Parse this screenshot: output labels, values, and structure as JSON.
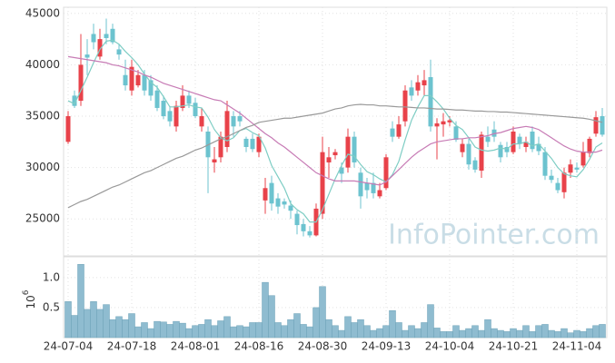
{
  "chart_data": {
    "type": "candlestick",
    "watermark": "InfoPointer.com",
    "categories": [
      "24-07-04",
      null,
      null,
      null,
      null,
      null,
      null,
      null,
      null,
      null,
      "24-07-18",
      null,
      null,
      null,
      null,
      null,
      null,
      null,
      null,
      null,
      "24-08-01",
      null,
      null,
      null,
      null,
      null,
      null,
      null,
      null,
      null,
      "24-08-16",
      null,
      null,
      null,
      null,
      null,
      null,
      null,
      null,
      null,
      "24-08-30",
      null,
      null,
      null,
      null,
      null,
      null,
      null,
      null,
      null,
      "24-09-13",
      null,
      null,
      null,
      null,
      null,
      null,
      null,
      null,
      null,
      "24-10-04",
      null,
      null,
      null,
      null,
      null,
      null,
      null,
      null,
      null,
      "24-10-21",
      null,
      null,
      null,
      null,
      null,
      null,
      null,
      null,
      null,
      "24-11-04",
      null,
      null,
      null,
      null
    ],
    "open": [
      32500,
      37000,
      36500,
      41000,
      43000,
      40800,
      43000,
      43500,
      41500,
      39000,
      37500,
      38000,
      39000,
      38500,
      37500,
      36500,
      35500,
      34000,
      35800,
      37000,
      36300,
      34000,
      33500,
      30500,
      31000,
      32000,
      35000,
      35000,
      32800,
      32800,
      31500,
      26800,
      28500,
      27000,
      26700,
      26300,
      25500,
      24500,
      23800,
      23400,
      25500,
      30500,
      31200,
      30000,
      30000,
      33000,
      29500,
      28500,
      28500,
      27200,
      28000,
      33800,
      33000,
      34500,
      37800,
      37500,
      38000,
      38800,
      34000,
      34200,
      34400,
      34000,
      31500,
      32300,
      30700,
      29700,
      33000,
      33700,
      32200,
      32000,
      31500,
      33000,
      32000,
      33500,
      32300,
      31500,
      29200,
      28500,
      27600,
      29500,
      30000,
      30200,
      31400,
      33300,
      35000
    ],
    "high": [
      35500,
      37500,
      43000,
      42500,
      44000,
      43500,
      44500,
      44000,
      42000,
      40500,
      40500,
      39500,
      39500,
      39000,
      38000,
      37000,
      36000,
      36500,
      38000,
      37500,
      36800,
      35800,
      34000,
      32000,
      33500,
      36500,
      35500,
      35500,
      33000,
      33300,
      33300,
      29000,
      29200,
      27500,
      27000,
      26800,
      25800,
      25000,
      24300,
      26500,
      33000,
      32000,
      31800,
      30500,
      33800,
      33500,
      30000,
      29000,
      29500,
      28500,
      31300,
      34500,
      35000,
      38000,
      38500,
      39000,
      39500,
      40500,
      34800,
      35300,
      35000,
      34500,
      32800,
      32800,
      31000,
      33500,
      34000,
      34500,
      32500,
      32500,
      34000,
      33300,
      33000,
      34000,
      33000,
      32000,
      29800,
      29000,
      30000,
      30800,
      30500,
      32500,
      33000,
      35500,
      35800
    ],
    "low": [
      32300,
      35800,
      36000,
      39000,
      41500,
      40500,
      42000,
      42000,
      40500,
      37500,
      37000,
      37800,
      37000,
      36500,
      35500,
      34700,
      34000,
      33500,
      35500,
      35800,
      34800,
      33500,
      27500,
      29500,
      30500,
      31500,
      33000,
      34000,
      31500,
      31500,
      31000,
      25500,
      25800,
      25500,
      26000,
      25000,
      23500,
      23300,
      23200,
      23300,
      25000,
      29000,
      30800,
      28500,
      29500,
      30000,
      26000,
      27000,
      27000,
      27000,
      27800,
      32500,
      32800,
      34000,
      36500,
      37000,
      37000,
      33500,
      30800,
      33000,
      34000,
      32500,
      31000,
      29800,
      29500,
      29000,
      32000,
      32500,
      30500,
      31000,
      31300,
      31800,
      31500,
      31500,
      31200,
      28800,
      28500,
      27500,
      27000,
      29000,
      29500,
      30000,
      31000,
      33000,
      33000
    ],
    "close": [
      35000,
      36000,
      40000,
      40700,
      42200,
      42500,
      42600,
      42200,
      41000,
      38000,
      39800,
      39000,
      37500,
      37000,
      35800,
      35000,
      34500,
      36000,
      37000,
      36200,
      35000,
      35000,
      31000,
      30800,
      33000,
      35500,
      34000,
      34500,
      32000,
      31800,
      33000,
      28000,
      26500,
      26200,
      26400,
      25800,
      24400,
      23800,
      23400,
      26000,
      31500,
      31000,
      31500,
      29400,
      33000,
      30500,
      27200,
      27800,
      27500,
      27800,
      31000,
      33000,
      34200,
      37500,
      37000,
      38300,
      38500,
      34000,
      34300,
      34500,
      34600,
      32700,
      32300,
      30300,
      29800,
      33200,
      32500,
      33000,
      31000,
      31500,
      33500,
      32300,
      32500,
      31800,
      31600,
      29200,
      28800,
      27800,
      29500,
      30300,
      29800,
      31500,
      32800,
      34900,
      33200
    ],
    "up_color": "#e8424a",
    "down_color": "#6cc3cf",
    "moving_averages": [
      {
        "color": "#7ecdc4",
        "values": [
          36500,
          36200,
          37500,
          38800,
          40200,
          41500,
          42300,
          42400,
          42000,
          41300,
          40700,
          40000,
          39100,
          38300,
          37800,
          36900,
          35900,
          35900,
          36000,
          36100,
          35900,
          35800,
          34900,
          33700,
          32900,
          32600,
          32900,
          33600,
          33800,
          33400,
          33100,
          31900,
          30200,
          29100,
          28000,
          26500,
          25900,
          25500,
          24700,
          24700,
          25900,
          27400,
          28900,
          30200,
          31300,
          31100,
          30300,
          29600,
          29300,
          28900,
          28600,
          29300,
          30600,
          32700,
          34600,
          35900,
          37000,
          37000,
          36400,
          35700,
          34800,
          34100,
          33700,
          32900,
          32000,
          31700,
          31600,
          31700,
          31900,
          31800,
          32300,
          32300,
          32500,
          32100,
          32300,
          31600,
          30900,
          30000,
          29400,
          29200,
          29100,
          29800,
          30800,
          32000,
          32400
        ]
      },
      {
        "color": "#c77bb5",
        "values": [
          40800,
          40700,
          40600,
          40500,
          40400,
          40300,
          40200,
          40000,
          39900,
          39700,
          39500,
          39300,
          39000,
          38800,
          38500,
          38200,
          38000,
          37800,
          37600,
          37400,
          37200,
          37000,
          36800,
          36600,
          36500,
          36100,
          35700,
          35300,
          34800,
          34300,
          33800,
          33300,
          32900,
          32400,
          32000,
          31500,
          31000,
          30500,
          30000,
          29500,
          29200,
          28900,
          28700,
          28700,
          28700,
          28700,
          28600,
          28500,
          28400,
          28300,
          28600,
          29200,
          29800,
          30400,
          31000,
          31500,
          31900,
          32300,
          32500,
          32600,
          32700,
          32800,
          32800,
          32900,
          32900,
          33000,
          33100,
          33300,
          33400,
          33600,
          33800,
          33900,
          34000,
          33900,
          33700,
          33300,
          32900,
          32500,
          32100,
          31800,
          31600,
          31500,
          31500,
          31500,
          31700
        ]
      },
      {
        "color": "#999999",
        "values": [
          26100,
          26400,
          26700,
          26900,
          27200,
          27500,
          27800,
          28100,
          28300,
          28600,
          28900,
          29200,
          29500,
          29700,
          30000,
          30300,
          30600,
          30900,
          31100,
          31400,
          31700,
          31900,
          32200,
          32500,
          32800,
          33000,
          33300,
          33600,
          33900,
          34100,
          34400,
          34500,
          34600,
          34700,
          34800,
          34800,
          34900,
          35000,
          35100,
          35200,
          35300,
          35500,
          35700,
          35800,
          36000,
          36100,
          36150,
          36100,
          36100,
          36000,
          36000,
          35950,
          35900,
          35900,
          35850,
          35800,
          35800,
          35750,
          35700,
          35700,
          35650,
          35600,
          35600,
          35550,
          35500,
          35500,
          35450,
          35450,
          35400,
          35400,
          35350,
          35300,
          35250,
          35200,
          35150,
          35100,
          35050,
          35000,
          34950,
          34900,
          34850,
          34800,
          34700,
          34550,
          34400
        ]
      }
    ],
    "ylim": [
      21400,
      45600
    ],
    "yticks": [
      25000,
      30000,
      35000,
      40000,
      45000
    ],
    "grid": true,
    "volume": {
      "color": "#8fbcd0",
      "ylabel": "10",
      "ylabel_exponent": "6",
      "ylim": [
        0,
        1.3
      ],
      "yticks": [
        0.5,
        {
          "value": 1,
          "label": "1.0"
        }
      ],
      "values": [
        0.6,
        0.37,
        1.22,
        0.47,
        0.6,
        0.47,
        0.55,
        0.3,
        0.35,
        0.3,
        0.4,
        0.18,
        0.25,
        0.15,
        0.27,
        0.26,
        0.22,
        0.27,
        0.24,
        0.15,
        0.2,
        0.22,
        0.3,
        0.2,
        0.28,
        0.35,
        0.18,
        0.2,
        0.18,
        0.25,
        0.25,
        0.92,
        0.7,
        0.25,
        0.2,
        0.3,
        0.4,
        0.22,
        0.18,
        0.5,
        0.85,
        0.3,
        0.2,
        0.12,
        0.35,
        0.25,
        0.3,
        0.2,
        0.12,
        0.15,
        0.2,
        0.45,
        0.25,
        0.12,
        0.2,
        0.15,
        0.25,
        0.55,
        0.16,
        0.1,
        0.1,
        0.2,
        0.12,
        0.15,
        0.2,
        0.12,
        0.3,
        0.15,
        0.12,
        0.1,
        0.15,
        0.12,
        0.2,
        0.1,
        0.2,
        0.22,
        0.12,
        0.1,
        0.15,
        0.08,
        0.12,
        0.1,
        0.15,
        0.2,
        0.22
      ]
    }
  }
}
